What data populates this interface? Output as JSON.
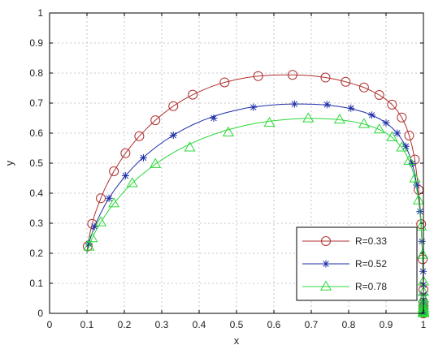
{
  "chart_data": {
    "type": "line",
    "title": "",
    "xlabel": "x",
    "ylabel": "y",
    "xlim": [
      0,
      1
    ],
    "ylim": [
      0,
      1
    ],
    "xticks": [
      {
        "value": 0,
        "label": "0"
      },
      {
        "value": 0.1,
        "label": "0.1"
      },
      {
        "value": 0.2,
        "label": "0.2"
      },
      {
        "value": 0.3,
        "label": "0.3"
      },
      {
        "value": 0.4,
        "label": "0.4"
      },
      {
        "value": 0.5,
        "label": "0.5"
      },
      {
        "value": 0.6,
        "label": "0.6"
      },
      {
        "value": 0.7,
        "label": "0.7"
      },
      {
        "value": 0.8,
        "label": "0.8"
      },
      {
        "value": 0.9,
        "label": "0.9"
      },
      {
        "value": 1,
        "label": "1"
      }
    ],
    "yticks": [
      {
        "value": 0,
        "label": "0"
      },
      {
        "value": 0.1,
        "label": "0.1"
      },
      {
        "value": 0.2,
        "label": "0.2"
      },
      {
        "value": 0.3,
        "label": "0.3"
      },
      {
        "value": 0.4,
        "label": "0.4"
      },
      {
        "value": 0.5,
        "label": "0.5"
      },
      {
        "value": 0.6,
        "label": "0.6"
      },
      {
        "value": 0.7,
        "label": "0.7"
      },
      {
        "value": 0.8,
        "label": "0.8"
      },
      {
        "value": 0.9,
        "label": "0.9"
      },
      {
        "value": 1,
        "label": "1"
      }
    ],
    "grid": true,
    "legend_position": "bottom-right",
    "series": [
      {
        "name": "R=0.33",
        "color": "#b03030",
        "marker": "circle",
        "x": [
          0.1,
          0.102,
          0.105,
          0.109,
          0.114,
          0.12,
          0.128,
          0.137,
          0.147,
          0.159,
          0.172,
          0.187,
          0.203,
          0.221,
          0.24,
          0.261,
          0.283,
          0.306,
          0.331,
          0.356,
          0.383,
          0.411,
          0.439,
          0.468,
          0.498,
          0.528,
          0.558,
          0.589,
          0.62,
          0.65,
          0.68,
          0.71,
          0.738,
          0.766,
          0.792,
          0.817,
          0.841,
          0.862,
          0.882,
          0.9,
          0.916,
          0.93,
          0.942,
          0.953,
          0.962,
          0.97,
          0.977,
          0.982,
          0.987,
          0.991,
          0.994,
          0.996,
          0.998,
          0.999,
          1.0,
          1.0,
          1.0,
          1.0,
          1.0,
          1.0,
          1.0,
          1.0,
          1.0,
          1.0,
          1.0,
          1.0,
          1.0,
          1.0,
          1.0,
          1.0,
          1.0
        ],
        "y": [
          0.2,
          0.223,
          0.247,
          0.272,
          0.298,
          0.326,
          0.354,
          0.383,
          0.413,
          0.443,
          0.473,
          0.503,
          0.533,
          0.562,
          0.59,
          0.617,
          0.643,
          0.667,
          0.69,
          0.71,
          0.728,
          0.744,
          0.758,
          0.769,
          0.778,
          0.785,
          0.79,
          0.793,
          0.794,
          0.794,
          0.793,
          0.79,
          0.785,
          0.779,
          0.771,
          0.762,
          0.752,
          0.74,
          0.727,
          0.712,
          0.695,
          0.675,
          0.652,
          0.624,
          0.592,
          0.555,
          0.512,
          0.464,
          0.411,
          0.355,
          0.297,
          0.238,
          0.18,
          0.126,
          0.079,
          0.05,
          0.036,
          0.026,
          0.019,
          0.013,
          0.009,
          0.006,
          0.004,
          0.003,
          0.002,
          0.001,
          0.001,
          0.0,
          0.0,
          0.0,
          0.0
        ],
        "marker_x": [
          0.102,
          0.114,
          0.137,
          0.172,
          0.203,
          0.24,
          0.283,
          0.331,
          0.383,
          0.468,
          0.558,
          0.65,
          0.738,
          0.792,
          0.841,
          0.882,
          0.916,
          0.942,
          0.962,
          0.977,
          0.987,
          0.994,
          0.998,
          1.0,
          1.0,
          1.0,
          1.0,
          1.0,
          1.0,
          1.0,
          1.0,
          1.0
        ],
        "marker_y": [
          0.223,
          0.298,
          0.383,
          0.473,
          0.533,
          0.59,
          0.643,
          0.69,
          0.728,
          0.769,
          0.79,
          0.794,
          0.785,
          0.771,
          0.752,
          0.727,
          0.695,
          0.652,
          0.592,
          0.512,
          0.411,
          0.297,
          0.18,
          0.079,
          0.036,
          0.019,
          0.009,
          0.004,
          0.002,
          0.001,
          0.0,
          0.0
        ]
      },
      {
        "name": "R=0.52",
        "color": "#1f2ea8",
        "marker": "star",
        "x": [
          0.1,
          0.102,
          0.105,
          0.109,
          0.114,
          0.12,
          0.128,
          0.137,
          0.147,
          0.159,
          0.172,
          0.187,
          0.203,
          0.221,
          0.24,
          0.261,
          0.283,
          0.306,
          0.331,
          0.356,
          0.383,
          0.411,
          0.439,
          0.468,
          0.498,
          0.528,
          0.558,
          0.589,
          0.62,
          0.65,
          0.68,
          0.71,
          0.738,
          0.766,
          0.792,
          0.817,
          0.841,
          0.862,
          0.882,
          0.9,
          0.916,
          0.93,
          0.942,
          0.953,
          0.962,
          0.97,
          0.977,
          0.982,
          0.987,
          0.991,
          0.994,
          0.996,
          0.998,
          0.999,
          1.0,
          1.0,
          1.0,
          1.0,
          1.0,
          1.0,
          1.0,
          1.0,
          1.0,
          1.0,
          1.0,
          1.0,
          1.0,
          1.0,
          1.0,
          1.0,
          1.0
        ],
        "y": [
          0.2,
          0.215,
          0.231,
          0.249,
          0.268,
          0.289,
          0.311,
          0.334,
          0.358,
          0.383,
          0.408,
          0.433,
          0.458,
          0.483,
          0.507,
          0.53,
          0.552,
          0.573,
          0.593,
          0.611,
          0.628,
          0.643,
          0.656,
          0.667,
          0.676,
          0.684,
          0.689,
          0.693,
          0.696,
          0.697,
          0.697,
          0.696,
          0.694,
          0.69,
          0.685,
          0.678,
          0.67,
          0.66,
          0.648,
          0.634,
          0.618,
          0.6,
          0.579,
          0.556,
          0.529,
          0.499,
          0.465,
          0.427,
          0.385,
          0.339,
          0.29,
          0.24,
          0.189,
          0.14,
          0.095,
          0.062,
          0.044,
          0.032,
          0.023,
          0.016,
          0.011,
          0.007,
          0.005,
          0.003,
          0.002,
          0.001,
          0.001,
          0.0,
          0.0,
          0.0,
          0.0
        ],
        "marker_x": [
          0.105,
          0.12,
          0.159,
          0.203,
          0.251,
          0.331,
          0.439,
          0.545,
          0.655,
          0.742,
          0.806,
          0.862,
          0.9,
          0.93,
          0.953,
          0.97,
          0.982,
          0.991,
          0.996,
          0.999,
          1.0,
          1.0,
          1.0,
          1.0,
          1.0,
          1.0,
          1.0,
          1.0,
          1.0,
          1.0,
          1.0,
          1.0
        ],
        "marker_y": [
          0.231,
          0.289,
          0.383,
          0.458,
          0.518,
          0.593,
          0.65,
          0.686,
          0.697,
          0.695,
          0.683,
          0.66,
          0.634,
          0.6,
          0.556,
          0.499,
          0.427,
          0.339,
          0.24,
          0.14,
          0.095,
          0.062,
          0.044,
          0.032,
          0.023,
          0.016,
          0.011,
          0.007,
          0.005,
          0.003,
          0.001,
          0.0
        ]
      },
      {
        "name": "R=0.78",
        "color": "#2ad838",
        "marker": "triangle",
        "x": [
          0.1,
          0.102,
          0.105,
          0.109,
          0.114,
          0.12,
          0.128,
          0.137,
          0.147,
          0.159,
          0.172,
          0.187,
          0.203,
          0.221,
          0.24,
          0.261,
          0.283,
          0.306,
          0.331,
          0.356,
          0.383,
          0.411,
          0.439,
          0.468,
          0.498,
          0.528,
          0.558,
          0.589,
          0.62,
          0.65,
          0.68,
          0.71,
          0.738,
          0.766,
          0.792,
          0.817,
          0.841,
          0.862,
          0.882,
          0.9,
          0.916,
          0.93,
          0.942,
          0.953,
          0.962,
          0.97,
          0.977,
          0.982,
          0.987,
          0.991,
          0.994,
          0.996,
          0.998,
          0.999,
          1.0,
          1.0,
          1.0,
          1.0,
          1.0,
          1.0,
          1.0,
          1.0,
          1.0,
          1.0,
          1.0,
          1.0,
          1.0,
          1.0,
          1.0,
          1.0,
          1.0
        ],
        "y": [
          0.2,
          0.21,
          0.222,
          0.235,
          0.25,
          0.266,
          0.284,
          0.303,
          0.323,
          0.344,
          0.366,
          0.388,
          0.411,
          0.433,
          0.455,
          0.476,
          0.497,
          0.516,
          0.535,
          0.552,
          0.568,
          0.583,
          0.596,
          0.608,
          0.618,
          0.627,
          0.634,
          0.64,
          0.644,
          0.647,
          0.649,
          0.649,
          0.648,
          0.646,
          0.642,
          0.637,
          0.63,
          0.622,
          0.612,
          0.6,
          0.586,
          0.57,
          0.552,
          0.531,
          0.507,
          0.48,
          0.449,
          0.414,
          0.376,
          0.334,
          0.289,
          0.242,
          0.195,
          0.149,
          0.106,
          0.071,
          0.05,
          0.036,
          0.026,
          0.018,
          0.012,
          0.008,
          0.005,
          0.003,
          0.002,
          0.001,
          0.001,
          0.0,
          0.0,
          0.0,
          0.0
        ],
        "marker_x": [
          0.105,
          0.114,
          0.137,
          0.172,
          0.221,
          0.283,
          0.375,
          0.478,
          0.588,
          0.692,
          0.776,
          0.841,
          0.882,
          0.916,
          0.942,
          0.962,
          0.977,
          0.987,
          0.994,
          0.998,
          1.0,
          1.0,
          1.0,
          1.0,
          1.0,
          1.0,
          1.0,
          1.0,
          1.0,
          1.0,
          1.0,
          1.0
        ],
        "marker_y": [
          0.222,
          0.25,
          0.303,
          0.366,
          0.433,
          0.497,
          0.552,
          0.602,
          0.634,
          0.649,
          0.645,
          0.63,
          0.612,
          0.586,
          0.552,
          0.507,
          0.449,
          0.376,
          0.289,
          0.195,
          0.106,
          0.071,
          0.05,
          0.036,
          0.026,
          0.018,
          0.012,
          0.008,
          0.005,
          0.003,
          0.001,
          0.0
        ]
      }
    ]
  }
}
